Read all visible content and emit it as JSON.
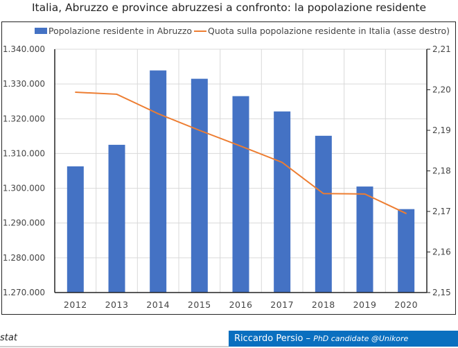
{
  "chart_data": {
    "type": "bar",
    "title": "Italia, Abruzzo e province abruzzesi a confronto: la popolazione residente",
    "categories": [
      "2012",
      "2013",
      "2014",
      "2015",
      "2016",
      "2017",
      "2018",
      "2019",
      "2020"
    ],
    "series": [
      {
        "name": "Popolazione residente in Abruzzo",
        "type": "bar",
        "axis": "left",
        "color": "#4472C4",
        "values": [
          1306300,
          1312500,
          1333900,
          1331500,
          1326500,
          1322100,
          1315100,
          1300500,
          1294000
        ]
      },
      {
        "name": "Quota sulla popolazione residente in Italia (asse destro)",
        "type": "line",
        "axis": "right",
        "color": "#ED7D31",
        "values": [
          2.1994,
          2.1989,
          2.1941,
          2.19,
          2.1861,
          2.1821,
          2.1744,
          2.1743,
          2.1695
        ]
      }
    ],
    "left_axis": {
      "range": [
        1270000,
        1340000
      ],
      "ticks": [
        "1.270.000",
        "1.280.000",
        "1.290.000",
        "1.300.000",
        "1.310.000",
        "1.320.000",
        "1.330.000",
        "1.340.000"
      ]
    },
    "right_axis": {
      "range": [
        2.15,
        2.21
      ],
      "ticks": [
        "2,15",
        "2,16",
        "2,17",
        "2,18",
        "2,19",
        "2,20",
        "2,21"
      ]
    },
    "grid": true,
    "legend_position": "top"
  },
  "footer": {
    "source": "stat",
    "credit_name": "Riccardo Persio – ",
    "credit_role": "PhD candidate @Unikore",
    "credit_color": "#0A6FBF"
  }
}
